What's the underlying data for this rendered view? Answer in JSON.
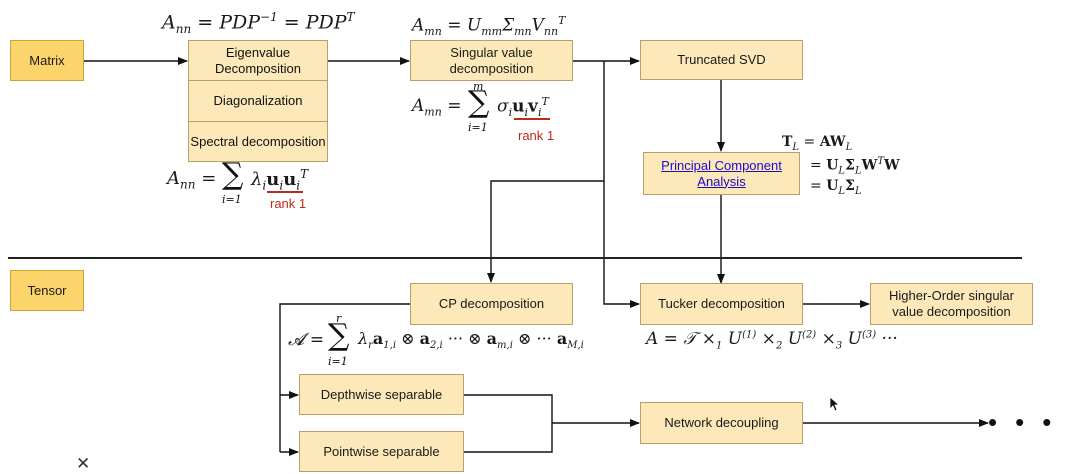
{
  "labels": {
    "matrix": "Matrix",
    "tensor": "Tensor"
  },
  "boxes": {
    "eigenvalue": "Eigenvalue Decomposition",
    "diagonalization": "Diagonalization",
    "spectral": "Spectral decomposition",
    "svd": "Singular value decomposition",
    "truncated_svd": "Truncated SVD",
    "pca": "Principal Component Analysis",
    "cp": "CP decomposition",
    "tucker": "Tucker decomposition",
    "hosvd": "Higher-Order singular value decomposition",
    "depthwise": "Depthwise separable",
    "pointwise": "Pointwise separable",
    "network": "Network decoupling"
  },
  "annotations": {
    "rank1_eig": "rank 1",
    "rank1_svd": "rank 1"
  },
  "formulas": {
    "eig_top": "A_nn = PDP^-1 = PDP^T",
    "eig_bottom": "A_nn = Σ_{i=1} λ_i u_i u_i^T",
    "svd_top": "A_mn = U_mm Σ_mn V_nn^T",
    "svd_bottom": "A_mn = Σ_{i=1}^{m} σ_i u_i v_i^T",
    "pca_line1": "T_L = A W_L",
    "pca_line2": "= U_L Σ_L W^T W",
    "pca_line3": "= U_L Σ_L",
    "cp": "A = Σ_{i=1}^{r} λ_r a_{1,i} ⊗ a_{2,i} ··· ⊗ a_{m,i} ⊗ ··· a_{M,i}",
    "tucker": "A = T ×1 U^(1) ×2 U^(2) ×3 U^(3) ···"
  },
  "icons": {
    "close": "close-icon",
    "more": "ellipsis-icon"
  },
  "colors": {
    "box_fill": "#fce8b8",
    "label_fill": "#fbd56b",
    "rank_annotation": "#c02a1a",
    "link": "#1a0dcc"
  }
}
